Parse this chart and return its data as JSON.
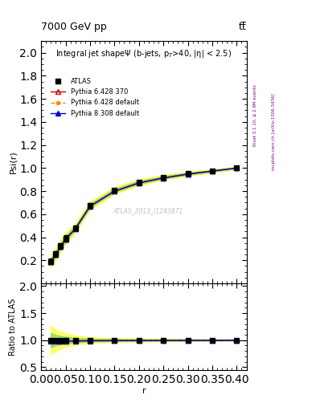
{
  "title_top": "7000 GeV pp",
  "title_top_right": "tt̅",
  "right_label1": "Rivet 3.1.10, ≥ 2.9M events",
  "right_label2": "mcplots.cern.ch [arXiv:1306.3436]",
  "watermark": "ATLAS_2013_I1243871",
  "main_title": "Integral jet shapeΨ (b-jets, p_{T}>40, |η| < 2.5)",
  "ylabel_main": "Psi(r)",
  "ylabel_ratio": "Ratio to ATLAS",
  "xlabel": "r",
  "xlim": [
    0.0,
    0.42
  ],
  "ylim_main": [
    0.0,
    2.1
  ],
  "ylim_ratio": [
    0.45,
    2.05
  ],
  "yticks_main": [
    0.2,
    0.4,
    0.6,
    0.8,
    1.0,
    1.2,
    1.4,
    1.6,
    1.8,
    2.0
  ],
  "yticks_ratio": [
    0.5,
    1.0,
    1.5,
    2.0
  ],
  "xticks": [
    0.0,
    0.05,
    0.1,
    0.15,
    0.2,
    0.25,
    0.3,
    0.35,
    0.4
  ],
  "r_values": [
    0.02,
    0.03,
    0.04,
    0.05,
    0.07,
    0.1,
    0.15,
    0.2,
    0.25,
    0.3,
    0.35,
    0.4
  ],
  "atlas_y": [
    0.19,
    0.255,
    0.325,
    0.39,
    0.48,
    0.675,
    0.805,
    0.875,
    0.918,
    0.95,
    0.975,
    1.0
  ],
  "atlas_yerr": [
    0.025,
    0.025,
    0.025,
    0.025,
    0.02,
    0.018,
    0.015,
    0.013,
    0.011,
    0.009,
    0.007,
    0.005
  ],
  "py6_370_y": [
    0.188,
    0.252,
    0.32,
    0.385,
    0.475,
    0.67,
    0.8,
    0.872,
    0.915,
    0.948,
    0.974,
    1.0
  ],
  "py6_default_y": [
    0.188,
    0.252,
    0.32,
    0.385,
    0.475,
    0.67,
    0.8,
    0.872,
    0.915,
    0.948,
    0.974,
    1.0
  ],
  "py8_default_y": [
    0.186,
    0.25,
    0.318,
    0.382,
    0.472,
    0.668,
    0.798,
    0.87,
    0.913,
    0.947,
    0.973,
    1.0
  ],
  "ratio_py6_370": [
    0.99,
    0.99,
    0.98,
    0.987,
    0.99,
    0.993,
    0.994,
    0.997,
    0.997,
    0.998,
    0.999,
    1.0
  ],
  "ratio_py6_default": [
    0.99,
    0.99,
    0.98,
    0.987,
    0.99,
    0.993,
    0.994,
    0.997,
    0.997,
    0.998,
    0.999,
    1.0
  ],
  "ratio_py8_default": [
    0.978,
    0.98,
    0.975,
    0.978,
    0.983,
    0.988,
    0.991,
    0.994,
    0.995,
    0.997,
    0.998,
    1.0
  ],
  "atlas_color": "black",
  "py6_370_color": "#cc0000",
  "py6_default_color": "#ff8800",
  "py8_default_color": "#0000cc",
  "legend_entries": [
    "ATLAS",
    "Pythia 6.428 370",
    "Pythia 6.428 default",
    "Pythia 8.308 default"
  ]
}
